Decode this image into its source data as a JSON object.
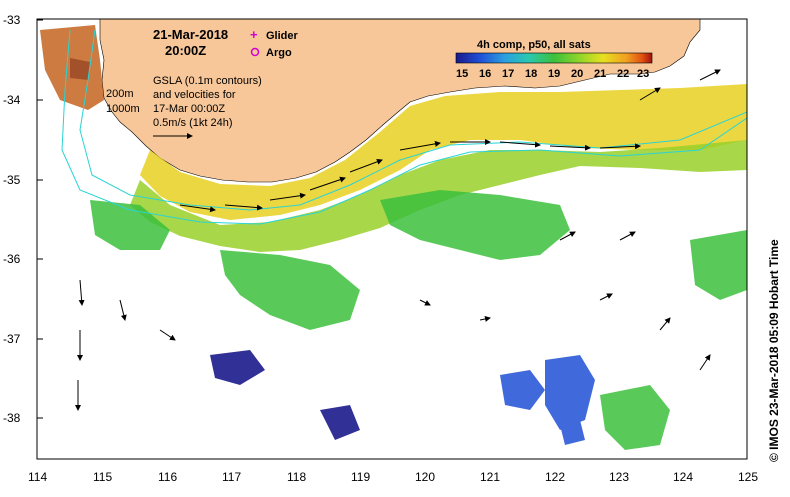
{
  "map": {
    "date": "21-Mar-2018",
    "time": "20:00Z",
    "legend_markers": [
      {
        "label": "Glider",
        "symbol": "+",
        "color": "#d000d0"
      },
      {
        "label": "Argo",
        "symbol": "o",
        "color": "#d000d0"
      }
    ],
    "contour_labels": [
      "200m",
      "1000m"
    ],
    "gsla_note": [
      "GSLA (0.1m contours)",
      "and velocities for",
      "17-Mar 00:00Z",
      "0.5m/s (1kt 24h)"
    ],
    "colorbar": {
      "title": "4h comp, p50, all sats",
      "ticks": [
        "15",
        "16",
        "17",
        "18",
        "19",
        "20",
        "21",
        "22",
        "23"
      ],
      "colors": [
        "#1a1a8c",
        "#1f4fd6",
        "#2aa0e0",
        "#2ac8b0",
        "#3cc03c",
        "#8ad42a",
        "#e8e020",
        "#f0a020",
        "#e05010",
        "#a01010"
      ]
    },
    "x_ticks": [
      "114",
      "115",
      "116",
      "117",
      "118",
      "119",
      "120",
      "121",
      "122",
      "123",
      "124",
      "125"
    ],
    "y_ticks": [
      "-33",
      "-34",
      "-35",
      "-36",
      "-37",
      "-38"
    ],
    "credit": "©  IMOS 23-Mar-2018 05:09 Hobart Time",
    "colors": {
      "land": "#f7c79a",
      "coast_contour": "#2ad4d4",
      "velocity_arrow": "#000000"
    }
  }
}
